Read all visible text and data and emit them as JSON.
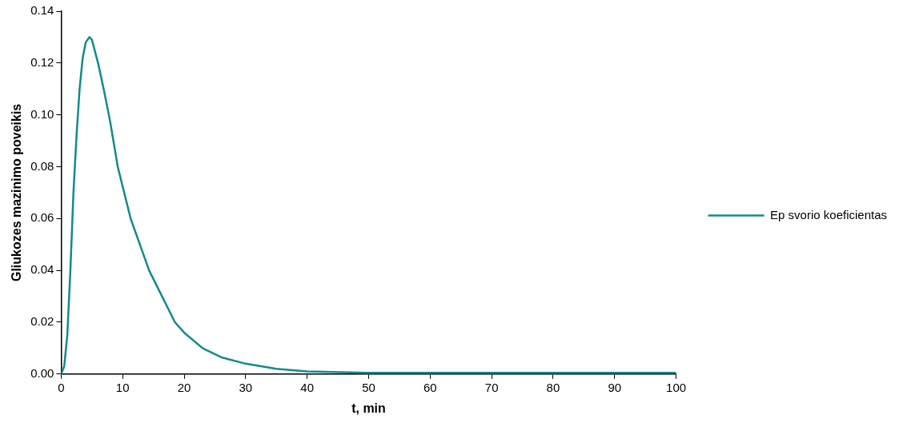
{
  "chart_data": {
    "type": "line",
    "xlabel": "t, min",
    "ylabel": "Gliukozes mazinimo poveikis",
    "x": [
      0,
      0.5,
      1,
      1.5,
      2,
      2.5,
      3,
      3.5,
      4,
      4.6,
      5,
      6,
      7,
      8,
      9.2,
      11.3,
      14.3,
      18.5,
      20,
      23,
      26,
      30,
      35,
      40,
      50,
      60,
      80,
      100
    ],
    "series": [
      {
        "name": "Ep svorio koeficientas",
        "color": "#138a8a",
        "values": [
          0,
          0.003,
          0.015,
          0.04,
          0.07,
          0.092,
          0.11,
          0.122,
          0.128,
          0.13,
          0.129,
          0.12,
          0.109,
          0.097,
          0.08,
          0.06,
          0.04,
          0.02,
          0.016,
          0.01,
          0.0065,
          0.004,
          0.002,
          0.001,
          0.0005,
          0.0005,
          0.0005,
          0.0005
        ]
      }
    ],
    "xlim": [
      0,
      100
    ],
    "xticks": [
      0,
      10,
      20,
      30,
      40,
      50,
      60,
      70,
      80,
      90,
      100
    ],
    "ylim": [
      0,
      0.14
    ],
    "yticks": [
      {
        "value": 0,
        "label": "0.00"
      },
      {
        "value": 0.02,
        "label": "0.02"
      },
      {
        "value": 0.04,
        "label": "0.04"
      },
      {
        "value": 0.06,
        "label": "0.06"
      },
      {
        "value": 0.08,
        "label": "0.08"
      },
      {
        "value": 0.1,
        "label": "0.10"
      },
      {
        "value": 0.12,
        "label": "0.12"
      },
      {
        "value": 0.14,
        "label": "0.14"
      }
    ],
    "grid": false,
    "legend": "right",
    "marker": "none",
    "line_style": "solid"
  }
}
